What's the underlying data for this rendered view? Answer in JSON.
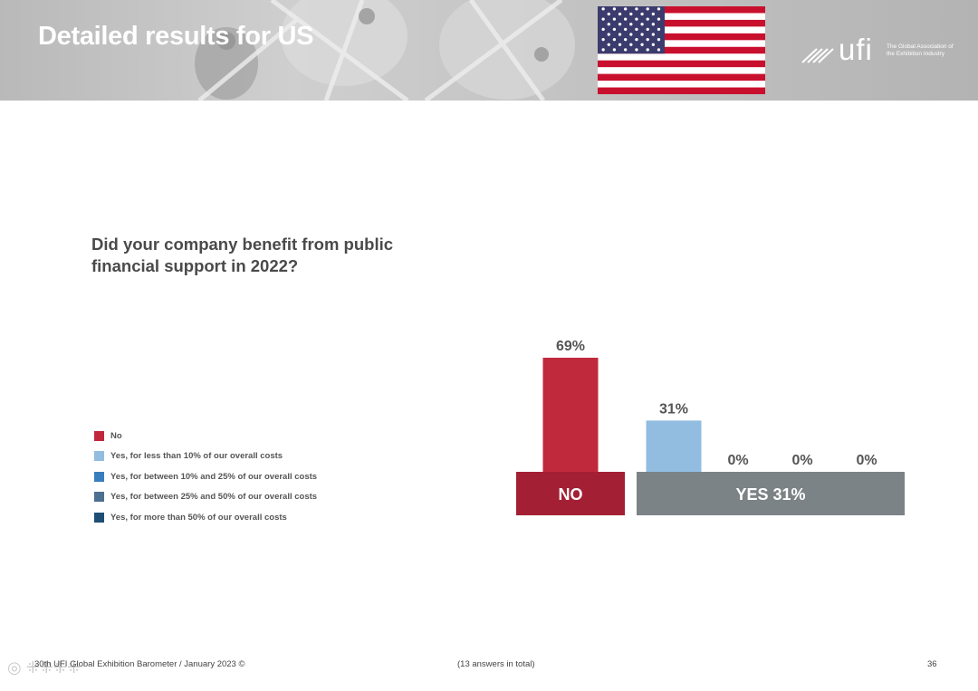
{
  "header": {
    "title": "Detailed results for US",
    "logo": {
      "wordmark": "ufi",
      "tagline": "The Global Association of the Exhibition Industry"
    }
  },
  "question": "Did your company benefit from public financial support in 2022?",
  "colors": {
    "no": "#c0293b",
    "yes_lt10": "#92bde0",
    "yes_10_25": "#3a7dbd",
    "yes_25_50": "#4d6f91",
    "yes_gt50": "#1f4e74",
    "group_no": "#a31f33",
    "group_yes": "#7b8386"
  },
  "chart_data": {
    "type": "bar",
    "title": "Did your company benefit from public financial support in 2022?",
    "unit": "%",
    "categories": [
      "No",
      "Yes, for less than 10% of our overall costs",
      "Yes, for between 10% and 25% of our overall costs",
      "Yes, for between 25% and 50% of our overall costs",
      "Yes, for more than 50% of our overall costs"
    ],
    "values": [
      69,
      31,
      0,
      0,
      0
    ],
    "value_labels": [
      "69%",
      "31%",
      "0%",
      "0%",
      "0%"
    ],
    "groups": [
      {
        "label": "NO",
        "categories": [
          0
        ]
      },
      {
        "label": "YES 31%",
        "categories": [
          1,
          2,
          3,
          4
        ]
      }
    ],
    "legend_position": "left",
    "ylim": [
      0,
      69
    ]
  },
  "footer": {
    "source": "30th UFI Global Exhibition Barometer / January 2023 ©",
    "answers": "(13 answers in total)",
    "page": "36"
  }
}
